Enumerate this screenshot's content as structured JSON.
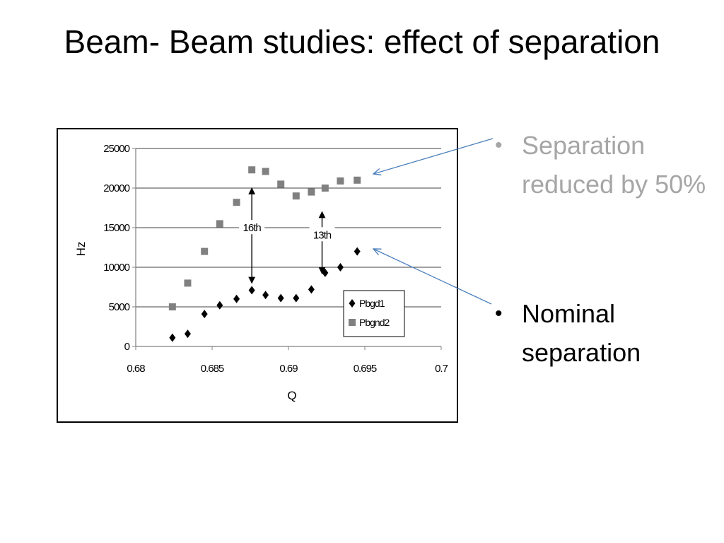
{
  "slide": {
    "title": "Beam- Beam studies: effect of separation"
  },
  "bullets": [
    {
      "text": "Separation reduced by 50%",
      "color": "#a6a6a6"
    },
    {
      "text": "Nominal separation",
      "color": "#000000"
    }
  ],
  "chart_data": {
    "type": "scatter",
    "xlabel": "Q",
    "ylabel": "Hz",
    "xlim": [
      0.68,
      0.7
    ],
    "ylim": [
      0,
      25000
    ],
    "x_ticks": [
      "0.68",
      "0.685",
      "0.69",
      "0.695",
      "0.7"
    ],
    "x_tick_values": [
      0.68,
      0.685,
      0.69,
      0.695,
      0.7
    ],
    "y_ticks": [
      "0",
      "5000",
      "10000",
      "15000",
      "20000",
      "25000"
    ],
    "y_tick_values": [
      0,
      5000,
      10000,
      15000,
      20000,
      25000
    ],
    "grid": "horizontal",
    "legend_position": "bottom-right",
    "series": [
      {
        "name": "Pbgd1",
        "marker": "diamond",
        "color": "#000000",
        "x": [
          0.6824,
          0.6834,
          0.6845,
          0.6855,
          0.6866,
          0.6876,
          0.6885,
          0.6895,
          0.6905,
          0.6915,
          0.6924,
          0.6934,
          0.6945
        ],
        "y": [
          1100,
          1600,
          4100,
          5200,
          6000,
          7100,
          6500,
          6100,
          6100,
          7200,
          9300,
          10000,
          12000
        ]
      },
      {
        "name": "Pbgnd2",
        "marker": "square",
        "color": "#808080",
        "x": [
          0.6824,
          0.6834,
          0.6845,
          0.6855,
          0.6866,
          0.6876,
          0.6885,
          0.6895,
          0.6905,
          0.6915,
          0.6924,
          0.6934,
          0.6945
        ],
        "y": [
          5000,
          8000,
          12000,
          15500,
          18200,
          22300,
          22100,
          20500,
          19000,
          19500,
          20000,
          20900,
          21000
        ]
      }
    ],
    "annotations": [
      {
        "label": "16th",
        "x": 0.6876,
        "y_top": 20000,
        "y_bottom": 8000
      },
      {
        "label": "13th",
        "x": 0.6922,
        "y_top": 17000,
        "y_bottom": 9200
      }
    ]
  }
}
